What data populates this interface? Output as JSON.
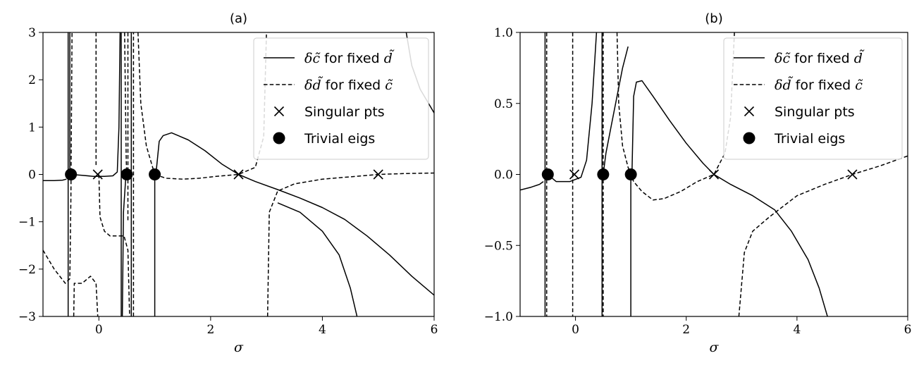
{
  "chart_data": [
    {
      "type": "line",
      "title": "(a)",
      "xlabel": "σ",
      "ylabel": "",
      "xlim": [
        -1,
        6
      ],
      "ylim": [
        -3,
        3
      ],
      "x_ticks": [
        0,
        2,
        4,
        6
      ],
      "y_ticks": [
        -3,
        -2,
        -1,
        0,
        1,
        2,
        3
      ],
      "x_tick_labels": [
        "0",
        "2",
        "4",
        "6"
      ],
      "y_tick_labels": [
        "−3",
        "−2",
        "−1",
        "0",
        "1",
        "2",
        "3"
      ],
      "grid": false,
      "legend_position": "top-right",
      "legend": [
        {
          "symbol": "solid-line",
          "math": "δc̃",
          "text": " for fixed ",
          "math2": "d̃"
        },
        {
          "symbol": "dashed-line",
          "math": "δd̃",
          "text": " for fixed ",
          "math2": "c̃"
        },
        {
          "symbol": "x-marker",
          "text": "Singular pts"
        },
        {
          "symbol": "dot-marker",
          "text": "Trivial eigs"
        }
      ],
      "series": [
        {
          "style": "solid",
          "values": [
            [
              -1,
              -0.13
            ],
            [
              -0.8,
              -0.13
            ],
            [
              -0.65,
              -0.12
            ],
            [
              -0.58,
              -0.1
            ]
          ]
        },
        {
          "style": "solid",
          "values": [
            [
              -0.55,
              3
            ],
            [
              -0.55,
              -3
            ]
          ]
        },
        {
          "style": "solid",
          "values": [
            [
              -0.52,
              3
            ],
            [
              -0.52,
              0
            ]
          ]
        },
        {
          "style": "solid",
          "values": [
            [
              -0.5,
              0
            ],
            [
              -0.3,
              -0.02
            ],
            [
              -0.1,
              -0.04
            ],
            [
              0.1,
              -0.04
            ],
            [
              0.25,
              -0.03
            ],
            [
              0.33,
              0.05
            ],
            [
              0.36,
              1
            ],
            [
              0.38,
              3
            ]
          ]
        },
        {
          "style": "solid",
          "values": [
            [
              0.4,
              -3
            ],
            [
              0.4,
              3
            ]
          ]
        },
        {
          "style": "solid",
          "values": [
            [
              0.42,
              -3
            ],
            [
              0.44,
              -0.8
            ],
            [
              0.48,
              -0.1
            ],
            [
              0.5,
              0
            ],
            [
              0.52,
              0.05
            ]
          ]
        },
        {
          "style": "solid",
          "values": [
            [
              0.58,
              -3
            ],
            [
              0.58,
              3
            ]
          ]
        },
        {
          "style": "solid",
          "values": [
            [
              1,
              -3
            ],
            [
              1,
              0
            ]
          ]
        },
        {
          "style": "solid",
          "values": [
            [
              1.02,
              0
            ],
            [
              1.08,
              0.7
            ],
            [
              1.15,
              0.82
            ],
            [
              1.3,
              0.88
            ],
            [
              1.6,
              0.73
            ],
            [
              1.9,
              0.5
            ],
            [
              2.2,
              0.22
            ],
            [
              2.5,
              0
            ],
            [
              2.8,
              -0.15
            ],
            [
              3.2,
              -0.32
            ],
            [
              3.6,
              -0.5
            ],
            [
              4.0,
              -0.7
            ],
            [
              4.4,
              -0.95
            ],
            [
              4.8,
              -1.3
            ],
            [
              5.2,
              -1.7
            ],
            [
              5.6,
              -2.15
            ],
            [
              6.0,
              -2.55
            ]
          ]
        },
        {
          "style": "solid",
          "values": [
            [
              3.2,
              -0.6
            ],
            [
              3.6,
              -0.8
            ],
            [
              4.0,
              -1.2
            ],
            [
              4.3,
              -1.7
            ],
            [
              4.5,
              -2.4
            ],
            [
              4.62,
              -3
            ]
          ]
        },
        {
          "style": "solid",
          "values": [
            [
              5.5,
              3
            ],
            [
              5.6,
              2.3
            ],
            [
              5.75,
              1.8
            ],
            [
              5.9,
              1.5
            ],
            [
              6.0,
              1.3
            ]
          ]
        },
        {
          "style": "dashed",
          "values": [
            [
              -1,
              -1.6
            ],
            [
              -0.8,
              -2.0
            ],
            [
              -0.6,
              -2.3
            ],
            [
              -0.52,
              -2.2
            ],
            [
              -0.5,
              -0.5
            ],
            [
              -0.48,
              3
            ]
          ]
        },
        {
          "style": "dashed",
          "values": [
            [
              -0.45,
              -3
            ],
            [
              -0.44,
              -2.3
            ],
            [
              -0.3,
              -2.3
            ],
            [
              -0.15,
              -2.15
            ],
            [
              -0.05,
              -2.3
            ],
            [
              -0.02,
              -3
            ]
          ]
        },
        {
          "style": "dashed",
          "values": [
            [
              -0.05,
              3
            ],
            [
              -0.05,
              0.2
            ]
          ]
        },
        {
          "style": "dashed",
          "values": [
            [
              0,
              0
            ],
            [
              0.02,
              -0.9
            ],
            [
              0.1,
              -1.2
            ],
            [
              0.2,
              -1.3
            ],
            [
              0.35,
              -1.3
            ],
            [
              0.45,
              -1.3
            ],
            [
              0.52,
              -1.6
            ],
            [
              0.55,
              -3
            ]
          ]
        },
        {
          "style": "dashed",
          "values": [
            [
              0.46,
              3
            ],
            [
              0.49,
              0.3
            ],
            [
              0.5,
              0
            ]
          ]
        },
        {
          "style": "dashed",
          "values": [
            [
              0.52,
              3
            ],
            [
              0.52,
              -1
            ]
          ]
        },
        {
          "style": "dashed",
          "values": [
            [
              0.62,
              -3
            ],
            [
              0.62,
              3
            ]
          ]
        },
        {
          "style": "dashed",
          "values": [
            [
              0.7,
              3
            ],
            [
              0.75,
              1.5
            ],
            [
              0.85,
              0.6
            ],
            [
              0.95,
              0.2
            ],
            [
              1.0,
              0
            ]
          ]
        },
        {
          "style": "dashed",
          "values": [
            [
              1.0,
              0
            ],
            [
              1.2,
              -0.08
            ],
            [
              1.5,
              -0.1
            ],
            [
              1.8,
              -0.08
            ],
            [
              2.1,
              -0.04
            ],
            [
              2.5,
              0
            ],
            [
              2.8,
              0.15
            ],
            [
              2.95,
              0.8
            ],
            [
              3.0,
              3
            ]
          ]
        },
        {
          "style": "dashed",
          "values": [
            [
              3.02,
              -3
            ],
            [
              3.05,
              -0.8
            ],
            [
              3.2,
              -0.35
            ],
            [
              3.5,
              -0.2
            ],
            [
              4.0,
              -0.1
            ],
            [
              4.5,
              -0.05
            ],
            [
              5.0,
              0
            ],
            [
              5.5,
              0.02
            ],
            [
              6.0,
              0.03
            ]
          ]
        }
      ],
      "singular_pts": [
        [
          -0.02,
          0
        ],
        [
          2.5,
          0
        ],
        [
          5.0,
          0
        ]
      ],
      "trivial_eigs": [
        [
          -0.5,
          0
        ],
        [
          0.5,
          0
        ],
        [
          1.0,
          0
        ]
      ]
    },
    {
      "type": "line",
      "title": "(b)",
      "xlabel": "σ",
      "ylabel": "",
      "xlim": [
        -1,
        6
      ],
      "ylim": [
        -1.0,
        1.0
      ],
      "x_ticks": [
        0,
        2,
        4,
        6
      ],
      "y_ticks": [
        -1.0,
        -0.5,
        0.0,
        0.5,
        1.0
      ],
      "x_tick_labels": [
        "0",
        "2",
        "4",
        "6"
      ],
      "y_tick_labels": [
        "−1.0",
        "−0.5",
        "0.0",
        "0.5",
        "1.0"
      ],
      "grid": false,
      "legend_position": "top-right",
      "legend": [
        {
          "symbol": "solid-line",
          "math": "δc̃",
          "text": " for fixed ",
          "math2": "d̃"
        },
        {
          "symbol": "dashed-line",
          "math": "δd̃",
          "text": " for fixed ",
          "math2": "c̃"
        },
        {
          "symbol": "x-marker",
          "text": "Singular pts"
        },
        {
          "symbol": "dot-marker",
          "text": "Trivial eigs"
        }
      ],
      "series": [
        {
          "style": "solid",
          "values": [
            [
              -1,
              -0.11
            ],
            [
              -0.8,
              -0.09
            ],
            [
              -0.65,
              -0.07
            ],
            [
              -0.58,
              -0.05
            ]
          ]
        },
        {
          "style": "solid",
          "values": [
            [
              -0.55,
              1
            ],
            [
              -0.55,
              -1
            ]
          ]
        },
        {
          "style": "solid",
          "values": [
            [
              -0.5,
              0
            ],
            [
              -0.35,
              -0.05
            ],
            [
              -0.1,
              -0.05
            ],
            [
              0.1,
              -0.02
            ],
            [
              0.2,
              0.1
            ],
            [
              0.3,
              0.5
            ],
            [
              0.38,
              1
            ]
          ]
        },
        {
          "style": "solid",
          "values": [
            [
              0.48,
              -1
            ],
            [
              0.48,
              1
            ]
          ]
        },
        {
          "style": "solid",
          "values": [
            [
              0.5,
              0
            ],
            [
              0.55,
              0.15
            ],
            [
              0.65,
              0.35
            ],
            [
              0.75,
              0.55
            ],
            [
              0.85,
              0.75
            ],
            [
              0.95,
              0.9
            ]
          ]
        },
        {
          "style": "solid",
          "values": [
            [
              1.0,
              -1
            ],
            [
              1.0,
              0
            ]
          ]
        },
        {
          "style": "solid",
          "values": [
            [
              1.02,
              0
            ],
            [
              1.05,
              0.55
            ],
            [
              1.1,
              0.65
            ],
            [
              1.2,
              0.66
            ],
            [
              1.4,
              0.55
            ],
            [
              1.7,
              0.38
            ],
            [
              2.0,
              0.22
            ],
            [
              2.3,
              0.08
            ],
            [
              2.5,
              0
            ],
            [
              2.8,
              -0.07
            ],
            [
              3.2,
              -0.15
            ],
            [
              3.6,
              -0.25
            ],
            [
              3.9,
              -0.4
            ],
            [
              4.2,
              -0.6
            ],
            [
              4.4,
              -0.8
            ],
            [
              4.55,
              -1
            ]
          ]
        },
        {
          "style": "dashed",
          "values": [
            [
              -0.52,
              1
            ],
            [
              -0.52,
              -1
            ]
          ]
        },
        {
          "style": "dashed",
          "values": [
            [
              -0.05,
              1
            ],
            [
              -0.05,
              -1
            ]
          ]
        },
        {
          "style": "dashed",
          "values": [
            [
              0.5,
              1
            ],
            [
              0.5,
              -1
            ]
          ]
        },
        {
          "style": "dashed",
          "values": [
            [
              0.75,
              1
            ],
            [
              0.78,
              0.5
            ],
            [
              0.85,
              0.2
            ],
            [
              0.95,
              0.05
            ],
            [
              1.0,
              0
            ],
            [
              1.05,
              -0.05
            ],
            [
              1.2,
              -0.12
            ],
            [
              1.4,
              -0.18
            ],
            [
              1.6,
              -0.17
            ],
            [
              1.9,
              -0.12
            ],
            [
              2.2,
              -0.05
            ],
            [
              2.5,
              0
            ],
            [
              2.7,
              0.15
            ],
            [
              2.8,
              0.4
            ],
            [
              2.87,
              1
            ]
          ]
        },
        {
          "style": "dashed",
          "values": [
            [
              2.95,
              -1
            ],
            [
              3.05,
              -0.55
            ],
            [
              3.2,
              -0.4
            ],
            [
              3.5,
              -0.3
            ],
            [
              4.0,
              -0.15
            ],
            [
              4.5,
              -0.07
            ],
            [
              5.0,
              0
            ],
            [
              5.5,
              0.06
            ],
            [
              6.0,
              0.13
            ]
          ]
        }
      ],
      "singular_pts": [
        [
          -0.02,
          0
        ],
        [
          2.5,
          0
        ],
        [
          5.0,
          0
        ]
      ],
      "trivial_eigs": [
        [
          -0.5,
          0
        ],
        [
          0.5,
          0
        ],
        [
          1.0,
          0
        ]
      ]
    }
  ]
}
